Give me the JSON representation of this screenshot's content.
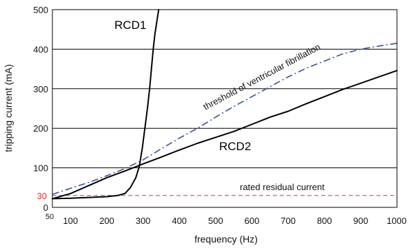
{
  "chart_data": {
    "type": "line",
    "xlabel": "frequency (Hz)",
    "ylabel": "tripping current (mA)",
    "xlim": [
      50,
      1000
    ],
    "ylim": [
      0,
      500
    ],
    "x_ticks": [
      "50",
      "100",
      "200",
      "300",
      "400",
      "500",
      "600",
      "700",
      "800",
      "900",
      "1000"
    ],
    "y_ticks": [
      "0",
      "100",
      "200",
      "300",
      "400",
      "500"
    ],
    "y_extra_tick": "30",
    "grid": "horizontal",
    "series": [
      {
        "name": "RCD1",
        "color": "#000000",
        "style": "solid",
        "x": [
          50,
          100,
          150,
          200,
          230,
          250,
          265,
          280,
          290,
          298,
          305,
          312,
          318,
          323,
          328,
          333,
          338,
          343
        ],
        "y": [
          22,
          23,
          25,
          27,
          30,
          35,
          50,
          75,
          105,
          150,
          200,
          250,
          300,
          350,
          400,
          440,
          470,
          500
        ]
      },
      {
        "name": "RCD2",
        "color": "#000000",
        "style": "solid",
        "x": [
          50,
          100,
          150,
          200,
          250,
          300,
          350,
          400,
          450,
          500,
          550,
          600,
          650,
          700,
          750,
          800,
          850,
          900,
          950,
          1000
        ],
        "y": [
          22,
          35,
          55,
          75,
          92,
          110,
          127,
          145,
          162,
          177,
          192,
          210,
          228,
          243,
          262,
          280,
          298,
          314,
          330,
          346
        ]
      },
      {
        "name": "threshold of ventricular fibrillation",
        "color": "#3a4f9b",
        "style": "dashdot",
        "x": [
          50,
          100,
          150,
          200,
          250,
          300,
          350,
          400,
          450,
          500,
          550,
          600,
          650,
          700,
          750,
          800,
          850,
          900,
          950,
          1000
        ],
        "y": [
          33,
          48,
          63,
          80,
          98,
          120,
          148,
          175,
          200,
          228,
          255,
          280,
          305,
          330,
          352,
          370,
          388,
          400,
          408,
          415
        ]
      }
    ],
    "reference_line": {
      "label": "rated residual current",
      "y": 30,
      "color": "#e03131",
      "style": "dashed"
    },
    "labels": {
      "rcd1": "RCD1",
      "rcd2": "RCD2",
      "threshold": "threshold of ventricular fibrillation"
    }
  }
}
